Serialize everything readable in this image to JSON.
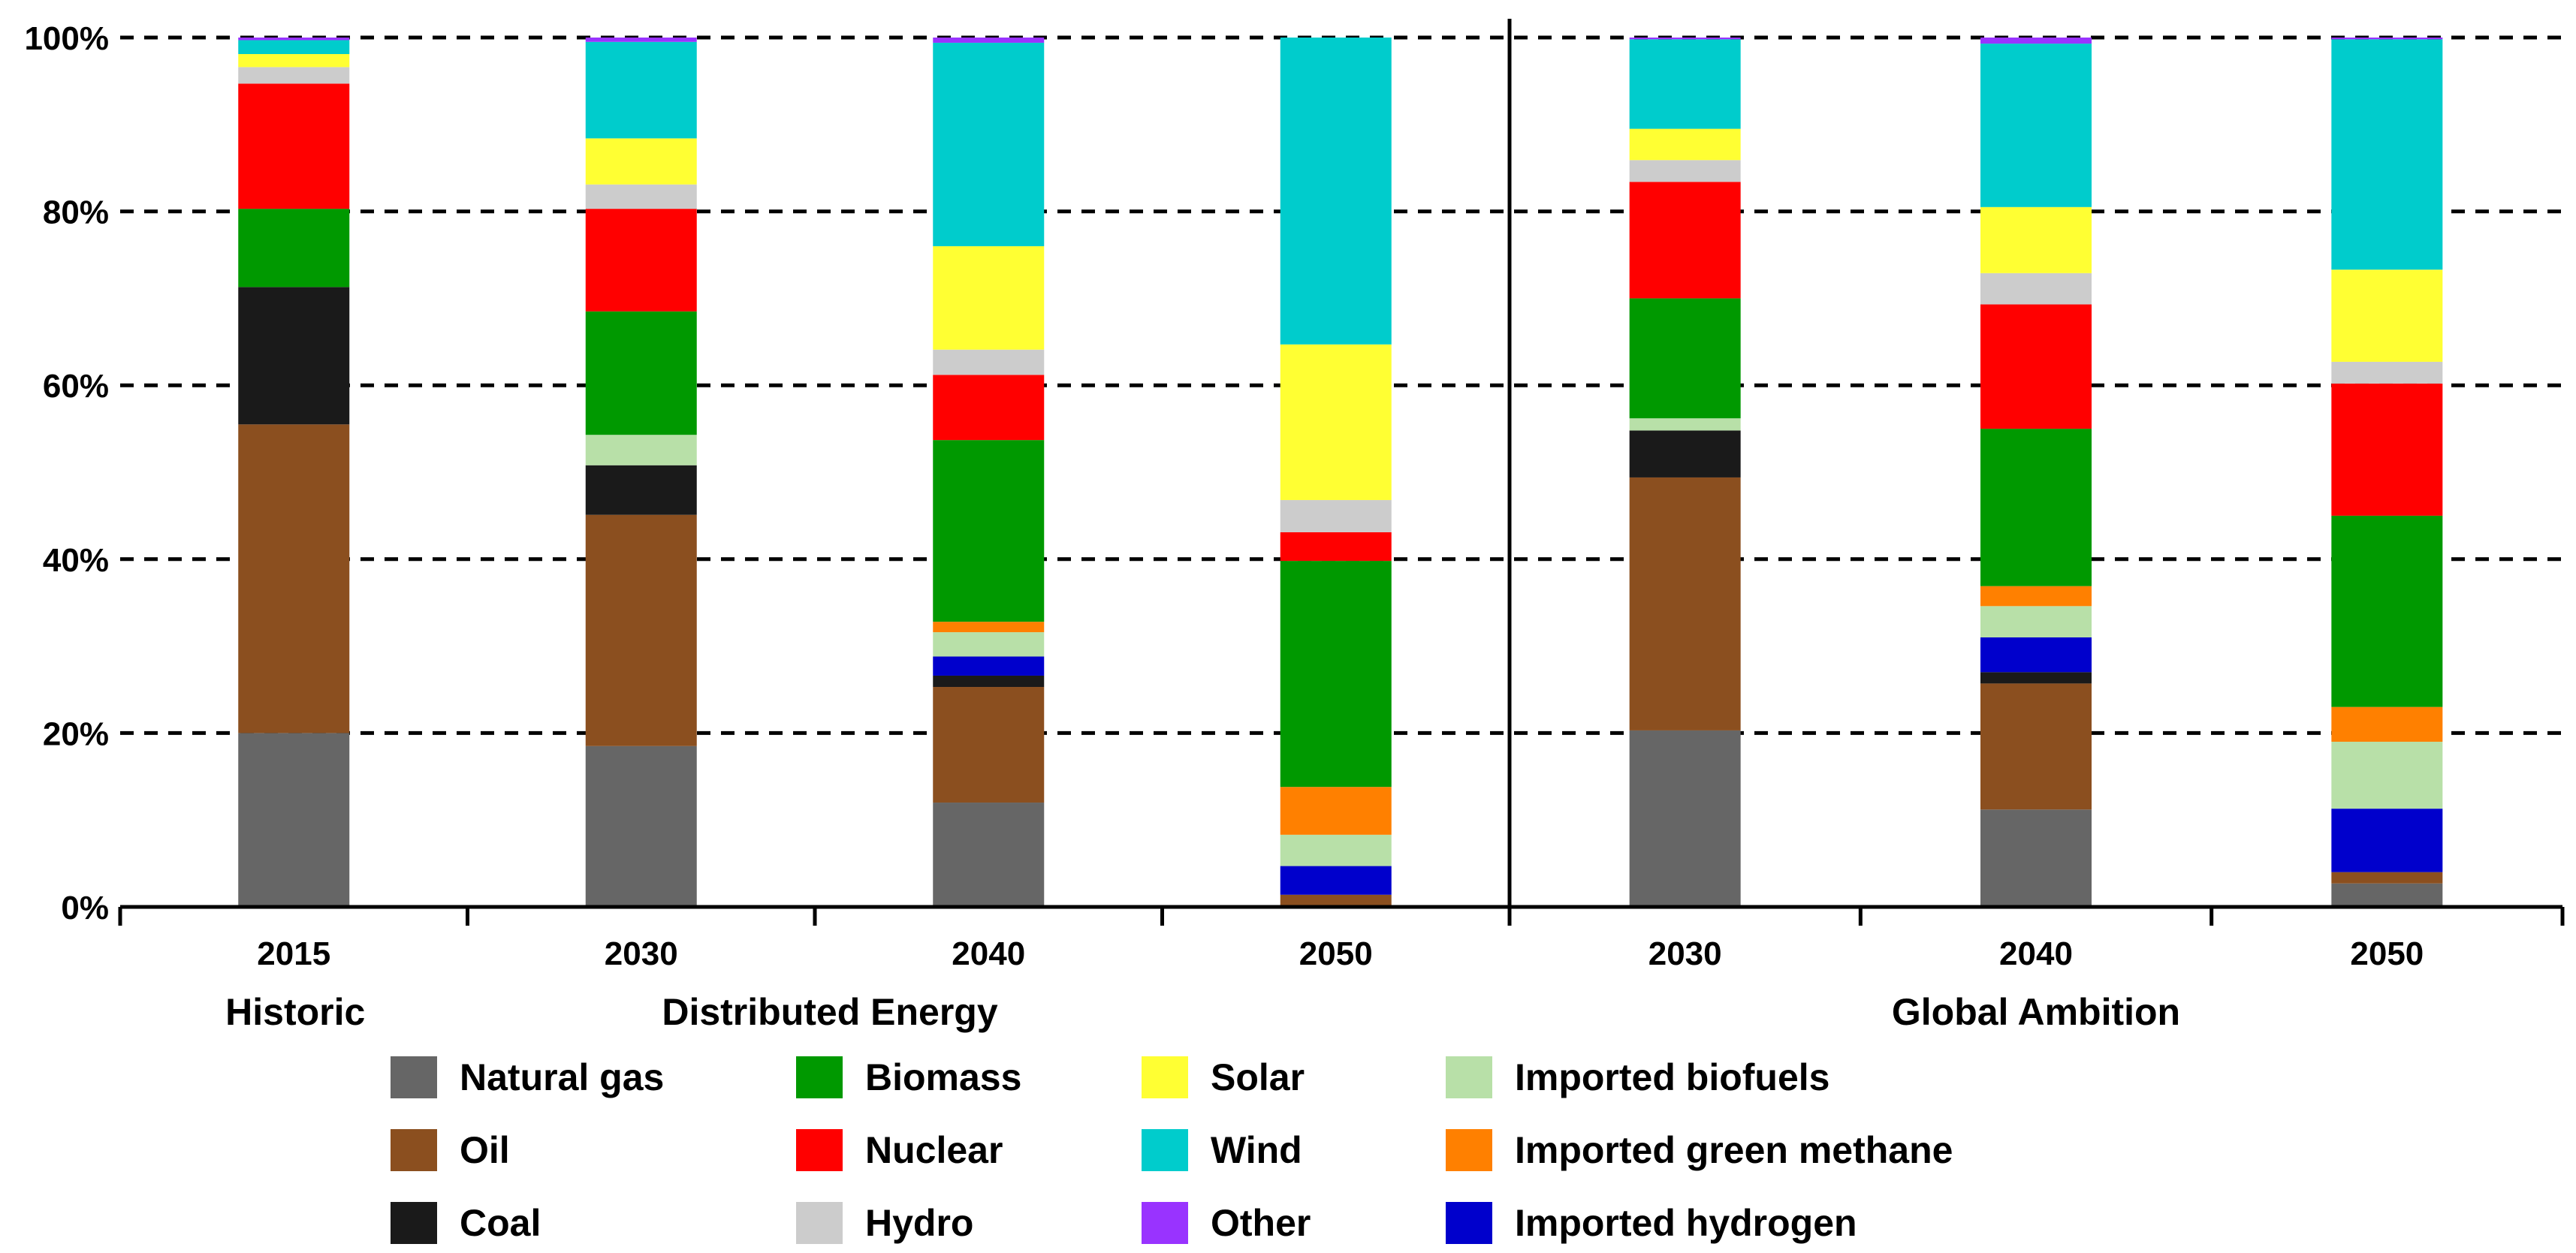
{
  "chart_data": {
    "type": "bar",
    "stacked": true,
    "title": "",
    "xlabel": "",
    "ylabel": "",
    "ylim": [
      0,
      100
    ],
    "yticks": [
      "0%",
      "20%",
      "40%",
      "60%",
      "80%",
      "100%"
    ],
    "grid": "dashed horizontal",
    "legend_position": "bottom",
    "groups": [
      {
        "label": "Historic",
        "categories": [
          "2015"
        ]
      },
      {
        "label": "Distributed Energy",
        "categories": [
          "2030",
          "2040",
          "2050"
        ]
      },
      {
        "label": "Global Ambition",
        "categories": [
          "2030",
          "2040",
          "2050"
        ]
      }
    ],
    "categories": [
      "2015",
      "2030",
      "2040",
      "2050",
      "2030",
      "2040",
      "2050"
    ],
    "series": [
      {
        "name": "Natural gas",
        "color": "#666666",
        "values": [
          20,
          18.5,
          12,
          0,
          20.3,
          11.2,
          2.7
        ]
      },
      {
        "name": "Oil",
        "color": "#8B4F1F",
        "values": [
          35.5,
          26.6,
          13.3,
          1.4,
          29.1,
          14.5,
          1.3
        ]
      },
      {
        "name": "Coal",
        "color": "#1A1A1A",
        "values": [
          15.8,
          5.7,
          1.3,
          0,
          5.4,
          1.3,
          0
        ]
      },
      {
        "name": "Imported hydrogen",
        "color": "#0000CC",
        "values": [
          0,
          0,
          2.2,
          3.3,
          0,
          4,
          7.3
        ]
      },
      {
        "name": "Imported biofuels",
        "color": "#B8E0A8",
        "values": [
          0,
          3.5,
          2.8,
          3.6,
          1.4,
          3.6,
          7.7
        ]
      },
      {
        "name": "Imported green methane",
        "color": "#FF8000",
        "values": [
          0,
          0,
          1.2,
          5.5,
          0,
          2.3,
          4
        ]
      },
      {
        "name": "Biomass",
        "color": "#009900",
        "values": [
          9,
          14.2,
          20.9,
          26,
          13.8,
          18.1,
          22
        ]
      },
      {
        "name": "Nuclear",
        "color": "#FF0000",
        "values": [
          14.4,
          11.8,
          7.5,
          3.3,
          13.4,
          14.3,
          15.2
        ]
      },
      {
        "name": "Hydro",
        "color": "#CCCCCC",
        "values": [
          1.9,
          2.8,
          2.9,
          3.7,
          2.5,
          3.6,
          2.5
        ]
      },
      {
        "name": "Solar",
        "color": "#FFFF33",
        "values": [
          1.5,
          5.3,
          11.9,
          17.9,
          3.6,
          7.6,
          10.6
        ]
      },
      {
        "name": "Wind",
        "color": "#00CCCC",
        "values": [
          1.6,
          11.1,
          23.4,
          35.3,
          10.3,
          18.8,
          26.5
        ]
      },
      {
        "name": "Other",
        "color": "#9933FF",
        "values": [
          0.3,
          0.5,
          0.6,
          0,
          0.2,
          0.7,
          0.2
        ]
      }
    ],
    "legend": [
      [
        "Natural gas",
        "Oil",
        "Coal"
      ],
      [
        "Biomass",
        "Nuclear",
        "Hydro"
      ],
      [
        "Solar",
        "Wind",
        "Other"
      ],
      [
        "Imported biofuels",
        "Imported green methane",
        "Imported hydrogen"
      ]
    ]
  }
}
